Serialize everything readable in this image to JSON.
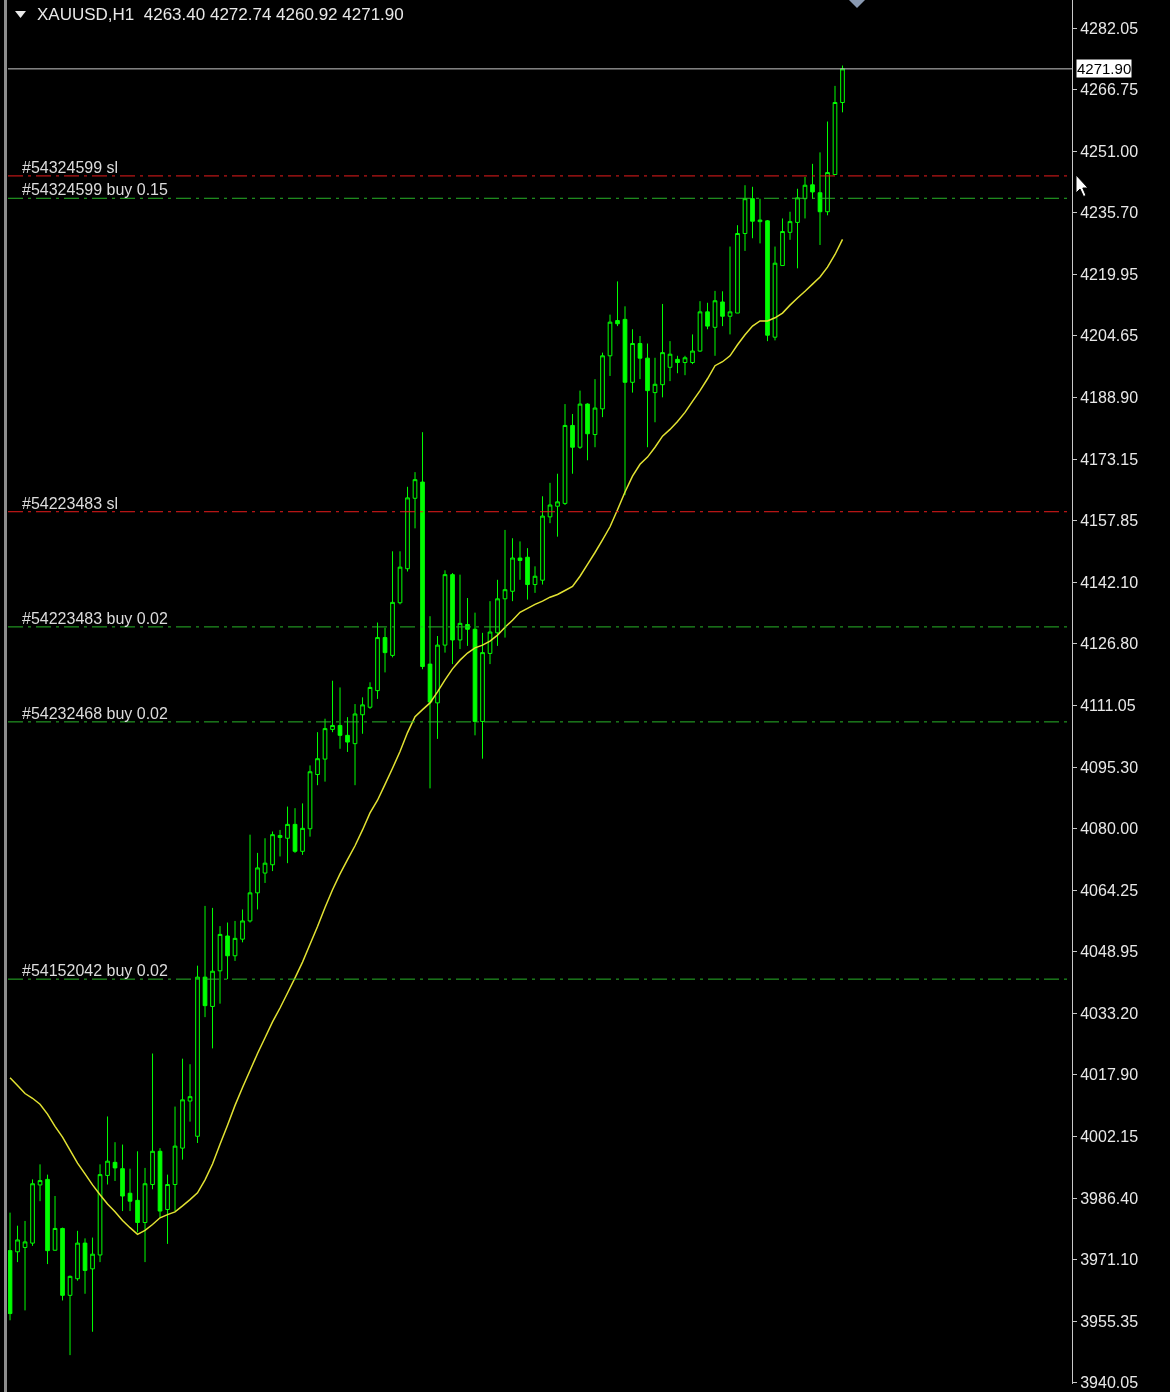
{
  "chart_data": {
    "type": "candlestick",
    "title": "XAUUSD,H1  4263.40 4272.74 4260.92 4271.90",
    "categories": [
      null,
      null,
      null,
      null,
      null,
      null,
      null,
      null,
      null,
      null,
      null,
      null,
      null,
      null,
      null,
      null,
      null,
      null,
      null,
      null,
      null,
      null,
      null,
      null,
      null,
      null,
      null,
      null,
      null,
      null,
      null,
      null,
      null,
      null,
      null,
      null,
      null,
      null,
      null,
      null,
      null,
      null,
      null,
      null,
      null,
      null,
      null,
      null,
      null,
      null,
      null,
      null,
      null,
      null,
      null,
      null,
      null,
      null,
      null,
      null,
      null,
      null,
      null,
      null,
      null,
      null,
      null,
      null,
      null,
      null,
      null,
      null,
      null,
      null,
      null,
      null,
      null,
      null,
      null,
      null,
      null,
      null,
      null,
      null,
      null,
      null,
      null,
      null,
      null,
      null,
      null,
      null,
      null,
      null,
      null,
      null,
      null,
      null,
      null,
      null,
      null,
      null,
      null,
      null,
      null,
      null,
      null,
      null,
      null,
      null,
      null,
      null
    ],
    "ohlc": [
      [
        3973.3,
        3982.9,
        3955.7,
        3957.4
      ],
      [
        3973.0,
        3979.6,
        3970.4,
        3976.0
      ],
      [
        3974.1,
        3980.8,
        3958.2,
        3975.5
      ],
      [
        3975.2,
        3991.3,
        3974.5,
        3990.2
      ],
      [
        3989.9,
        3995.1,
        3985.8,
        3991.0
      ],
      [
        3991.3,
        3992.5,
        3969.9,
        3973.3
      ],
      [
        3973.4,
        3987.1,
        3973.3,
        3978.9
      ],
      [
        3978.9,
        3979.1,
        3960.7,
        3962.0
      ],
      [
        3962.0,
        3967.0,
        3946.9,
        3966.8
      ],
      [
        3966.2,
        3978.3,
        3965.7,
        3975.2
      ],
      [
        3975.2,
        3976.4,
        3962.4,
        3968.3
      ],
      [
        3968.7,
        3976.6,
        3952.8,
        3972.4
      ],
      [
        3972.2,
        3995.1,
        3970.4,
        3992.5
      ],
      [
        3992.3,
        4007.2,
        3990.0,
        3995.9
      ],
      [
        3995.6,
        4000.7,
        3990.9,
        3994.2
      ],
      [
        3994.0,
        4000.1,
        3983.3,
        3987.1
      ],
      [
        3987.8,
        3994.0,
        3983.3,
        3985.8
      ],
      [
        3986.0,
        3998.4,
        3977.9,
        3980.4
      ],
      [
        3980.4,
        3994.2,
        3970.4,
        3990.2
      ],
      [
        3990.0,
        4023.1,
        3988.8,
        3998.4
      ],
      [
        3998.4,
        3999.2,
        3981.7,
        3983.3
      ],
      [
        3983.7,
        3992.5,
        3975.0,
        3990.0
      ],
      [
        3990.0,
        4009.7,
        3983.3,
        3999.7
      ],
      [
        3999.2,
        4021.8,
        3996.3,
        4011.4
      ],
      [
        4011.1,
        4020.4,
        4005.9,
        4012.2
      ],
      [
        4002.2,
        4045.3,
        4000.5,
        4042.4
      ],
      [
        4042.4,
        4060.4,
        4032.3,
        4035.2
      ],
      [
        4035.0,
        4059.9,
        4024.4,
        4043.9
      ],
      [
        4044.0,
        4055.3,
        4035.7,
        4053.2
      ],
      [
        4052.8,
        4056.2,
        4041.9,
        4047.8
      ],
      [
        4047.8,
        4056.6,
        4046.5,
        4052.2
      ],
      [
        4052.0,
        4059.5,
        4051.2,
        4056.6
      ],
      [
        4056.6,
        4078.4,
        4056.2,
        4063.7
      ],
      [
        4063.7,
        4073.8,
        4059.5,
        4070.0
      ],
      [
        4068.7,
        4077.5,
        4066.2,
        4071.2
      ],
      [
        4070.8,
        4079.2,
        4069.2,
        4078.4
      ],
      [
        4077.7,
        4079.6,
        4072.9,
        4078.2
      ],
      [
        4077.5,
        4085.5,
        4071.2,
        4081.0
      ],
      [
        4081.0,
        4085.1,
        4073.8,
        4074.2
      ],
      [
        4074.2,
        4086.3,
        4073.3,
        4080.0
      ],
      [
        4079.9,
        4095.9,
        4077.9,
        4094.3
      ],
      [
        4093.6,
        4104.3,
        4090.9,
        4097.6
      ],
      [
        4097.5,
        4107.7,
        4091.8,
        4105.2
      ],
      [
        4105.0,
        4117.3,
        4104.3,
        4106.0
      ],
      [
        4106.0,
        4115.6,
        4100.1,
        4103.5
      ],
      [
        4103.5,
        4108.1,
        4099.3,
        4101.8
      ],
      [
        4101.4,
        4111.4,
        4090.9,
        4108.9
      ],
      [
        4108.7,
        4113.1,
        4103.9,
        4111.2
      ],
      [
        4110.6,
        4116.9,
        4110.2,
        4115.6
      ],
      [
        4114.8,
        4132.0,
        4112.7,
        4128.2
      ],
      [
        4128.2,
        4130.7,
        4119.4,
        4124.4
      ],
      [
        4123.7,
        4150.0,
        4123.2,
        4137.1
      ],
      [
        4137.0,
        4150.0,
        4136.6,
        4146.0
      ],
      [
        4145.6,
        4166.3,
        4144.9,
        4163.5
      ],
      [
        4163.4,
        4170.0,
        4155.8,
        4168.1
      ],
      [
        4167.5,
        4180.1,
        4120.2,
        4120.9
      ],
      [
        4121.5,
        4133.6,
        4090.1,
        4111.9
      ],
      [
        4111.7,
        4128.6,
        4102.6,
        4126.3
      ],
      [
        4126.3,
        4145.2,
        4124.4,
        4144.1
      ],
      [
        4144.1,
        4144.5,
        4121.5,
        4127.6
      ],
      [
        4127.6,
        4144.1,
        4125.3,
        4131.8
      ],
      [
        4131.5,
        4138.2,
        4126.1,
        4130.3
      ],
      [
        4130.3,
        4134.5,
        4103.5,
        4107.0
      ],
      [
        4107.0,
        4129.4,
        4097.6,
        4124.4
      ],
      [
        4124.2,
        4137.4,
        4121.5,
        4129.6
      ],
      [
        4129.4,
        4142.8,
        4126.1,
        4138.0
      ],
      [
        4138.0,
        4155.4,
        4128.2,
        4140.3
      ],
      [
        4139.9,
        4153.3,
        4137.4,
        4148.3
      ],
      [
        4148.3,
        4152.5,
        4142.8,
        4147.7
      ],
      [
        4148.5,
        4150.8,
        4137.8,
        4141.6
      ],
      [
        4141.6,
        4146.2,
        4139.5,
        4143.7
      ],
      [
        4142.7,
        4163.9,
        4141.6,
        4158.9
      ],
      [
        4158.7,
        4167.3,
        4157.1,
        4161.7
      ],
      [
        4161.4,
        4169.6,
        4153.7,
        4162.5
      ],
      [
        4162.1,
        4187.2,
        4161.7,
        4181.8
      ],
      [
        4181.8,
        4184.7,
        4169.6,
        4176.3
      ],
      [
        4176.3,
        4190.6,
        4175.9,
        4187.2
      ],
      [
        4187.2,
        4187.4,
        4173.0,
        4179.7
      ],
      [
        4179.5,
        4193.5,
        4176.3,
        4186.2
      ],
      [
        4186.0,
        4200.2,
        4183.9,
        4199.4
      ],
      [
        4199.4,
        4209.8,
        4194.3,
        4207.9
      ],
      [
        4208.3,
        4218.2,
        4206.9,
        4207.5
      ],
      [
        4208.6,
        4211.9,
        4164.2,
        4192.7
      ],
      [
        4192.7,
        4206.1,
        4190.1,
        4202.5
      ],
      [
        4202.5,
        4204.4,
        4193.5,
        4198.8
      ],
      [
        4198.8,
        4202.5,
        4176.3,
        4190.6
      ],
      [
        4190.1,
        4198.9,
        4182.6,
        4192.2
      ],
      [
        4192.1,
        4212.5,
        4188.9,
        4200.2
      ],
      [
        4196.5,
        4203.1,
        4193.0,
        4199.8
      ],
      [
        4198.5,
        4199.4,
        4195.0,
        4197.7
      ],
      [
        4197.7,
        4199.4,
        4194.5,
        4198.9
      ],
      [
        4197.7,
        4204.8,
        4197.3,
        4200.6
      ],
      [
        4200.6,
        4213.2,
        4200.4,
        4210.5
      ],
      [
        4210.5,
        4212.8,
        4206.1,
        4206.9
      ],
      [
        4206.6,
        4215.8,
        4199.4,
        4213.3
      ],
      [
        4213.0,
        4215.7,
        4206.9,
        4209.4
      ],
      [
        4209.4,
        4227.0,
        4204.8,
        4210.5
      ],
      [
        4210.2,
        4232.4,
        4210.2,
        4230.3
      ],
      [
        4230.3,
        4242.5,
        4225.9,
        4239.1
      ],
      [
        4239.1,
        4242.1,
        4229.1,
        4233.4
      ],
      [
        4233.3,
        4239.1,
        4227.8,
        4233.7
      ],
      [
        4233.5,
        4233.7,
        4203.1,
        4204.6
      ],
      [
        4204.1,
        4227.0,
        4203.3,
        4222.8
      ],
      [
        4222.2,
        4234.1,
        4222.2,
        4230.8
      ],
      [
        4230.6,
        4235.8,
        4228.7,
        4233.3
      ],
      [
        4233.1,
        4241.6,
        4221.5,
        4239.3
      ],
      [
        4239.1,
        4244.6,
        4234.1,
        4242.5
      ],
      [
        4242.6,
        4247.9,
        4239.1,
        4240.8
      ],
      [
        4240.6,
        4250.8,
        4227.4,
        4235.8
      ],
      [
        4235.8,
        4258.6,
        4234.9,
        4245.7
      ],
      [
        4245.2,
        4267.6,
        4245.2,
        4263.4
      ],
      [
        4263.4,
        4272.74,
        4260.92,
        4271.9
      ]
    ],
    "color": "#00ff00",
    "series": [
      {
        "type": "line",
        "color": "#e2e232",
        "values": [
          4017.0,
          4015.0,
          4013.0,
          4011.8,
          4010.3,
          4007.8,
          4004.7,
          4002.0,
          3998.7,
          3995.4,
          3992.7,
          3989.9,
          3987.4,
          3985.1,
          3983.1,
          3980.9,
          3979.1,
          3977.4,
          3978.4,
          3979.9,
          3981.6,
          3982.4,
          3983.1,
          3984.6,
          3986.2,
          3987.9,
          3991.2,
          3995.2,
          4000.2,
          4005.0,
          4010.0,
          4014.5,
          4018.8,
          4023.1,
          4027.1,
          4031.1,
          4034.6,
          4038.4,
          4042.2,
          4046.2,
          4050.7,
          4055.2,
          4060.0,
          4064.5,
          4068.5,
          4072.1,
          4075.6,
          4079.6,
          4083.9,
          4087.1,
          4091.1,
          4095.2,
          4099.4,
          4104.2,
          4108.2,
          4110.0,
          4111.7,
          4114.5,
          4117.5,
          4120.3,
          4122.5,
          4124.3,
          4125.6,
          4126.3,
          4127.3,
          4128.8,
          4130.8,
          4132.6,
          4134.6,
          4135.6,
          4136.6,
          4137.4,
          4138.4,
          4139.1,
          4140.1,
          4141.1,
          4143.7,
          4146.7,
          4149.7,
          4152.9,
          4156.2,
          4160.5,
          4165.0,
          4169.0,
          4172.0,
          4173.8,
          4176.3,
          4179.1,
          4180.8,
          4182.8,
          4185.1,
          4187.9,
          4190.6,
          4193.6,
          4196.9,
          4197.9,
          4199.4,
          4202.2,
          4204.7,
          4206.9,
          4208.2,
          4208.2,
          4209.0,
          4210.2,
          4212.2,
          4214.0,
          4215.7,
          4217.5,
          4219.3,
          4221.8,
          4225.0,
          4228.8
        ]
      }
    ],
    "ylim": [
      3939.6,
      4289.3
    ],
    "yticks": [
      4282.05,
      4266.75,
      {
        "value": 4251,
        "label": "4251.00"
      },
      {
        "value": 4235.7,
        "label": "4235.70"
      },
      4219.95,
      4204.65,
      {
        "value": 4188.9,
        "label": "4188.90"
      },
      4173.15,
      4157.85,
      {
        "value": 4142.1,
        "label": "4142.10"
      },
      {
        "value": 4126.8,
        "label": "4126.80"
      },
      4111.05,
      {
        "value": 4095.3,
        "label": "4095.30"
      },
      {
        "value": 4080,
        "label": "4080.00"
      },
      4064.25,
      4048.95,
      {
        "value": 4033.2,
        "label": "4033.20"
      },
      {
        "value": 4017.9,
        "label": "4017.90"
      },
      4002.15,
      {
        "value": 3986.4,
        "label": "3986.40"
      },
      {
        "value": 3971.1,
        "label": "3971.10"
      },
      3955.35,
      3940.05
    ],
    "tick_labels": "y",
    "ref_lines": [
      {
        "axis": "y",
        "value": 4271.9,
        "label": "4271.90",
        "color": "#c8c8c8",
        "line_style": "solid"
      },
      {
        "axis": "y",
        "value": 4244.85,
        "label": "#54324599 sl",
        "color": "#e81c1c",
        "line_style": "dashed"
      },
      {
        "axis": "y",
        "value": 4239.2,
        "label": "#54324599 buy 0.15",
        "color": "#28b428",
        "line_style": "dashed"
      },
      {
        "axis": "y",
        "value": 4160.0,
        "label": "#54223483 sl",
        "color": "#e81c1c",
        "line_style": "dashed"
      },
      {
        "axis": "y",
        "value": 4130.9,
        "label": "#54223483 buy 0.02",
        "color": "#28b428",
        "line_style": "dashed"
      },
      {
        "axis": "y",
        "value": 4106.9,
        "label": "#54232468 buy 0.02",
        "color": "#28b428",
        "line_style": "dashed"
      },
      {
        "axis": "y",
        "value": 4041.9,
        "label": "#54152042 buy 0.02",
        "color": "#28b428",
        "line_style": "dashed"
      }
    ]
  }
}
